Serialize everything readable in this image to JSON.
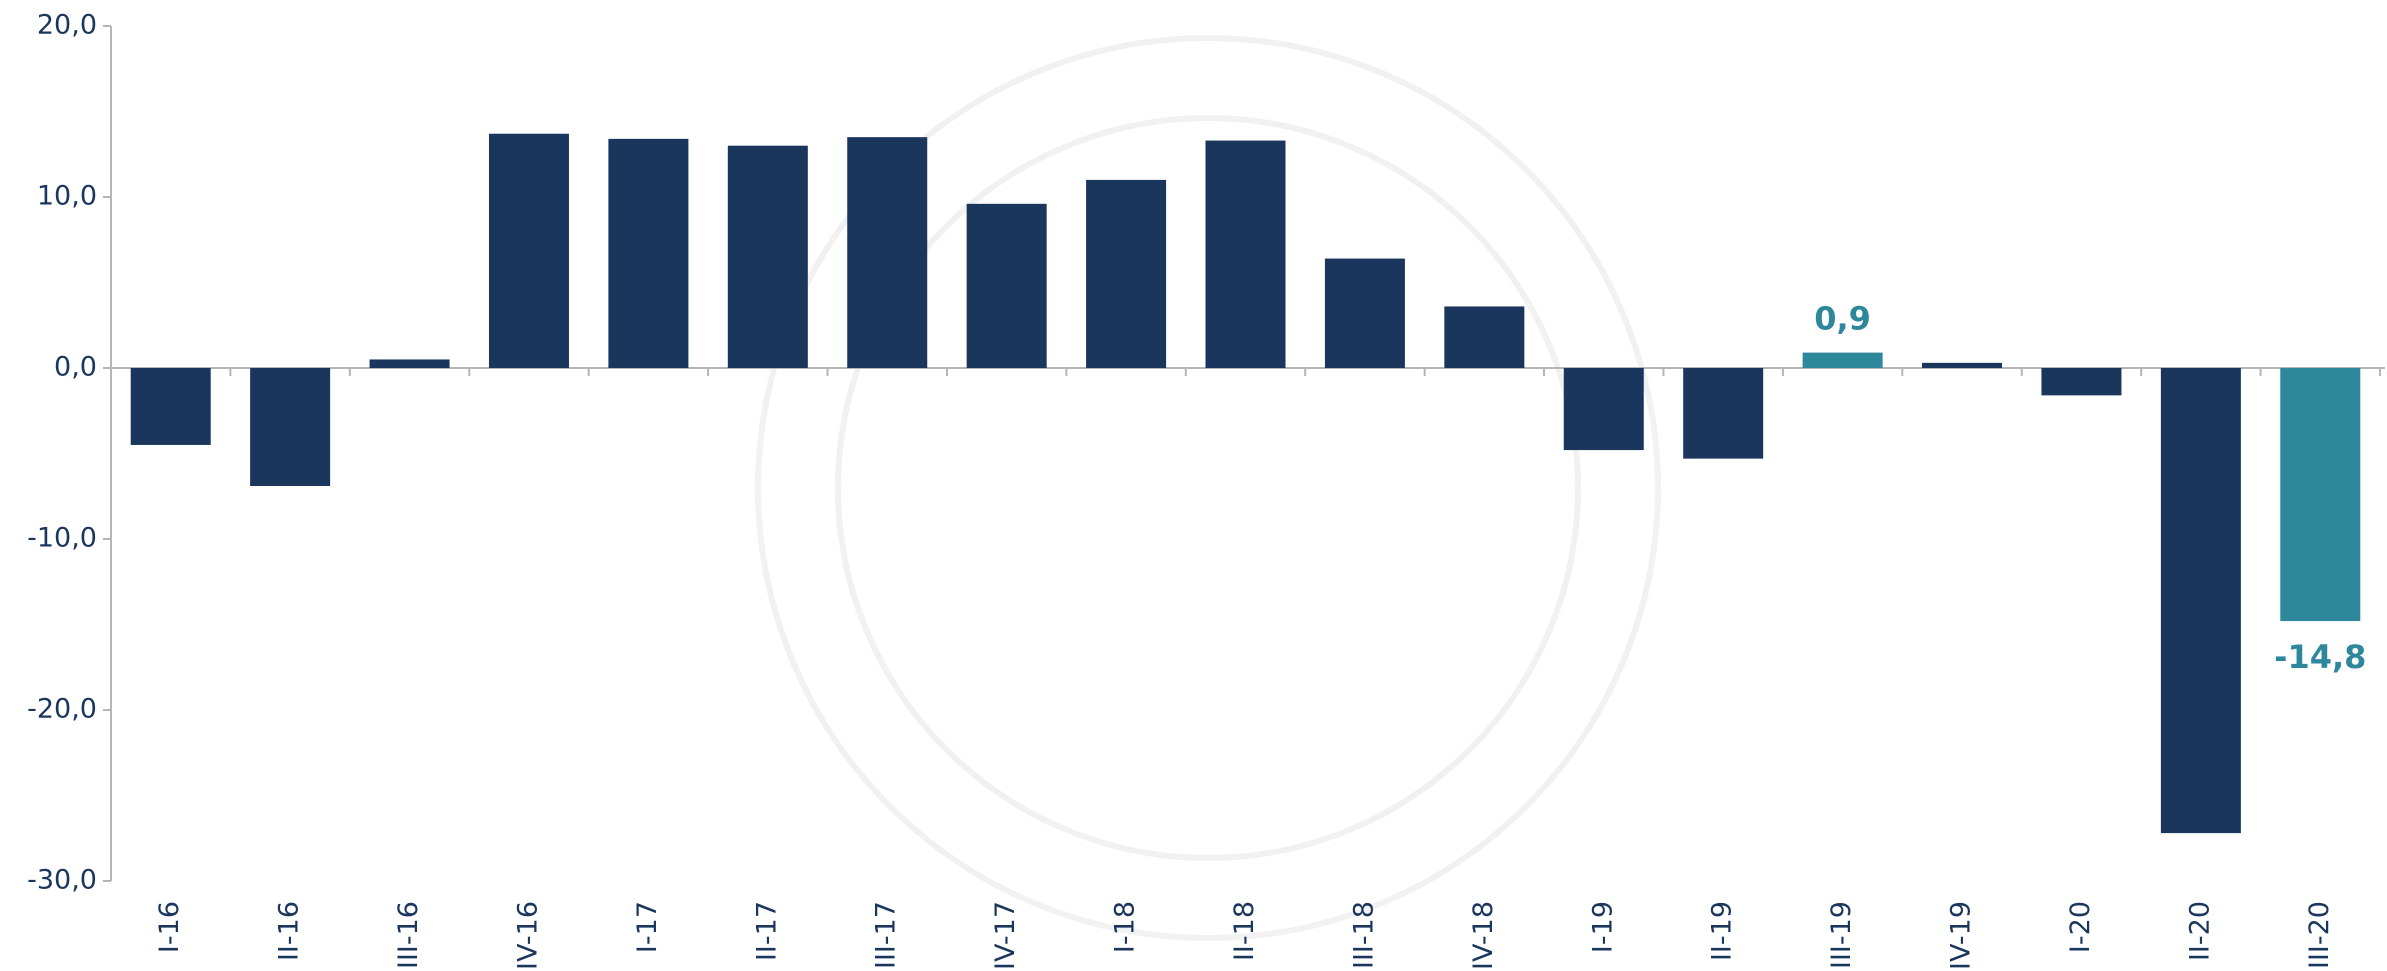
{
  "chart_data": {
    "type": "bar",
    "categories": [
      "I-16",
      "II-16",
      "III-16",
      "IV-16",
      "I-17",
      "II-17",
      "III-17",
      "IV-17",
      "I-18",
      "II-18",
      "III-18",
      "IV-18",
      "I-19",
      "II-19",
      "III-19",
      "IV-19",
      "I-20",
      "II-20",
      "III-20"
    ],
    "values": [
      -4.5,
      -6.9,
      0.5,
      13.7,
      13.4,
      13.0,
      13.5,
      9.6,
      11.0,
      13.3,
      6.4,
      3.6,
      -4.8,
      -5.3,
      0.9,
      0.3,
      -1.6,
      -27.2,
      -14.8
    ],
    "value_labels": [
      null,
      null,
      null,
      null,
      null,
      null,
      null,
      null,
      null,
      null,
      null,
      null,
      null,
      null,
      "0,9",
      null,
      null,
      null,
      "-14,8"
    ],
    "colors": [
      "#1b365d",
      "#1b365d",
      "#1b365d",
      "#1b365d",
      "#1b365d",
      "#1b365d",
      "#1b365d",
      "#1b365d",
      "#1b365d",
      "#1b365d",
      "#1b365d",
      "#1b365d",
      "#1b365d",
      "#1b365d",
      "#2f879c",
      "#1b365d",
      "#1b365d",
      "#1b365d",
      "#2f879c"
    ],
    "ylim": [
      -30,
      20
    ],
    "yticks": [
      {
        "value": -30,
        "label": "-30,0"
      },
      {
        "value": -20,
        "label": "-20,0"
      },
      {
        "value": -10,
        "label": "-10,0"
      },
      {
        "value": 0,
        "label": "0,0"
      },
      {
        "value": 10,
        "label": "10,0"
      },
      {
        "value": 20,
        "label": "20,0"
      }
    ],
    "grid": false
  }
}
